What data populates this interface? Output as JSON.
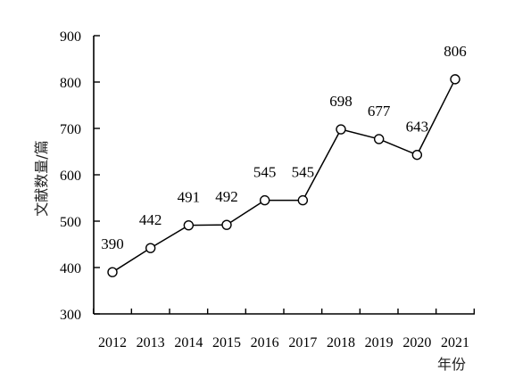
{
  "chart_data": {
    "type": "line",
    "categories": [
      "2012",
      "2013",
      "2014",
      "2015",
      "2016",
      "2017",
      "2018",
      "2019",
      "2020",
      "2021"
    ],
    "values": [
      390,
      442,
      491,
      492,
      545,
      545,
      698,
      677,
      643,
      806
    ],
    "data_labels": [
      "390",
      "442",
      "491",
      "492",
      "545",
      "545",
      "698",
      "677",
      "643",
      "806"
    ],
    "ylabel": "文献数量/篇",
    "xlabel": "年份",
    "ylim": [
      300,
      900
    ],
    "yticks": [
      300,
      400,
      500,
      600,
      700,
      800,
      900
    ],
    "grid": false,
    "legend": "none",
    "marker": "open-circle",
    "line_color": "#000000"
  }
}
